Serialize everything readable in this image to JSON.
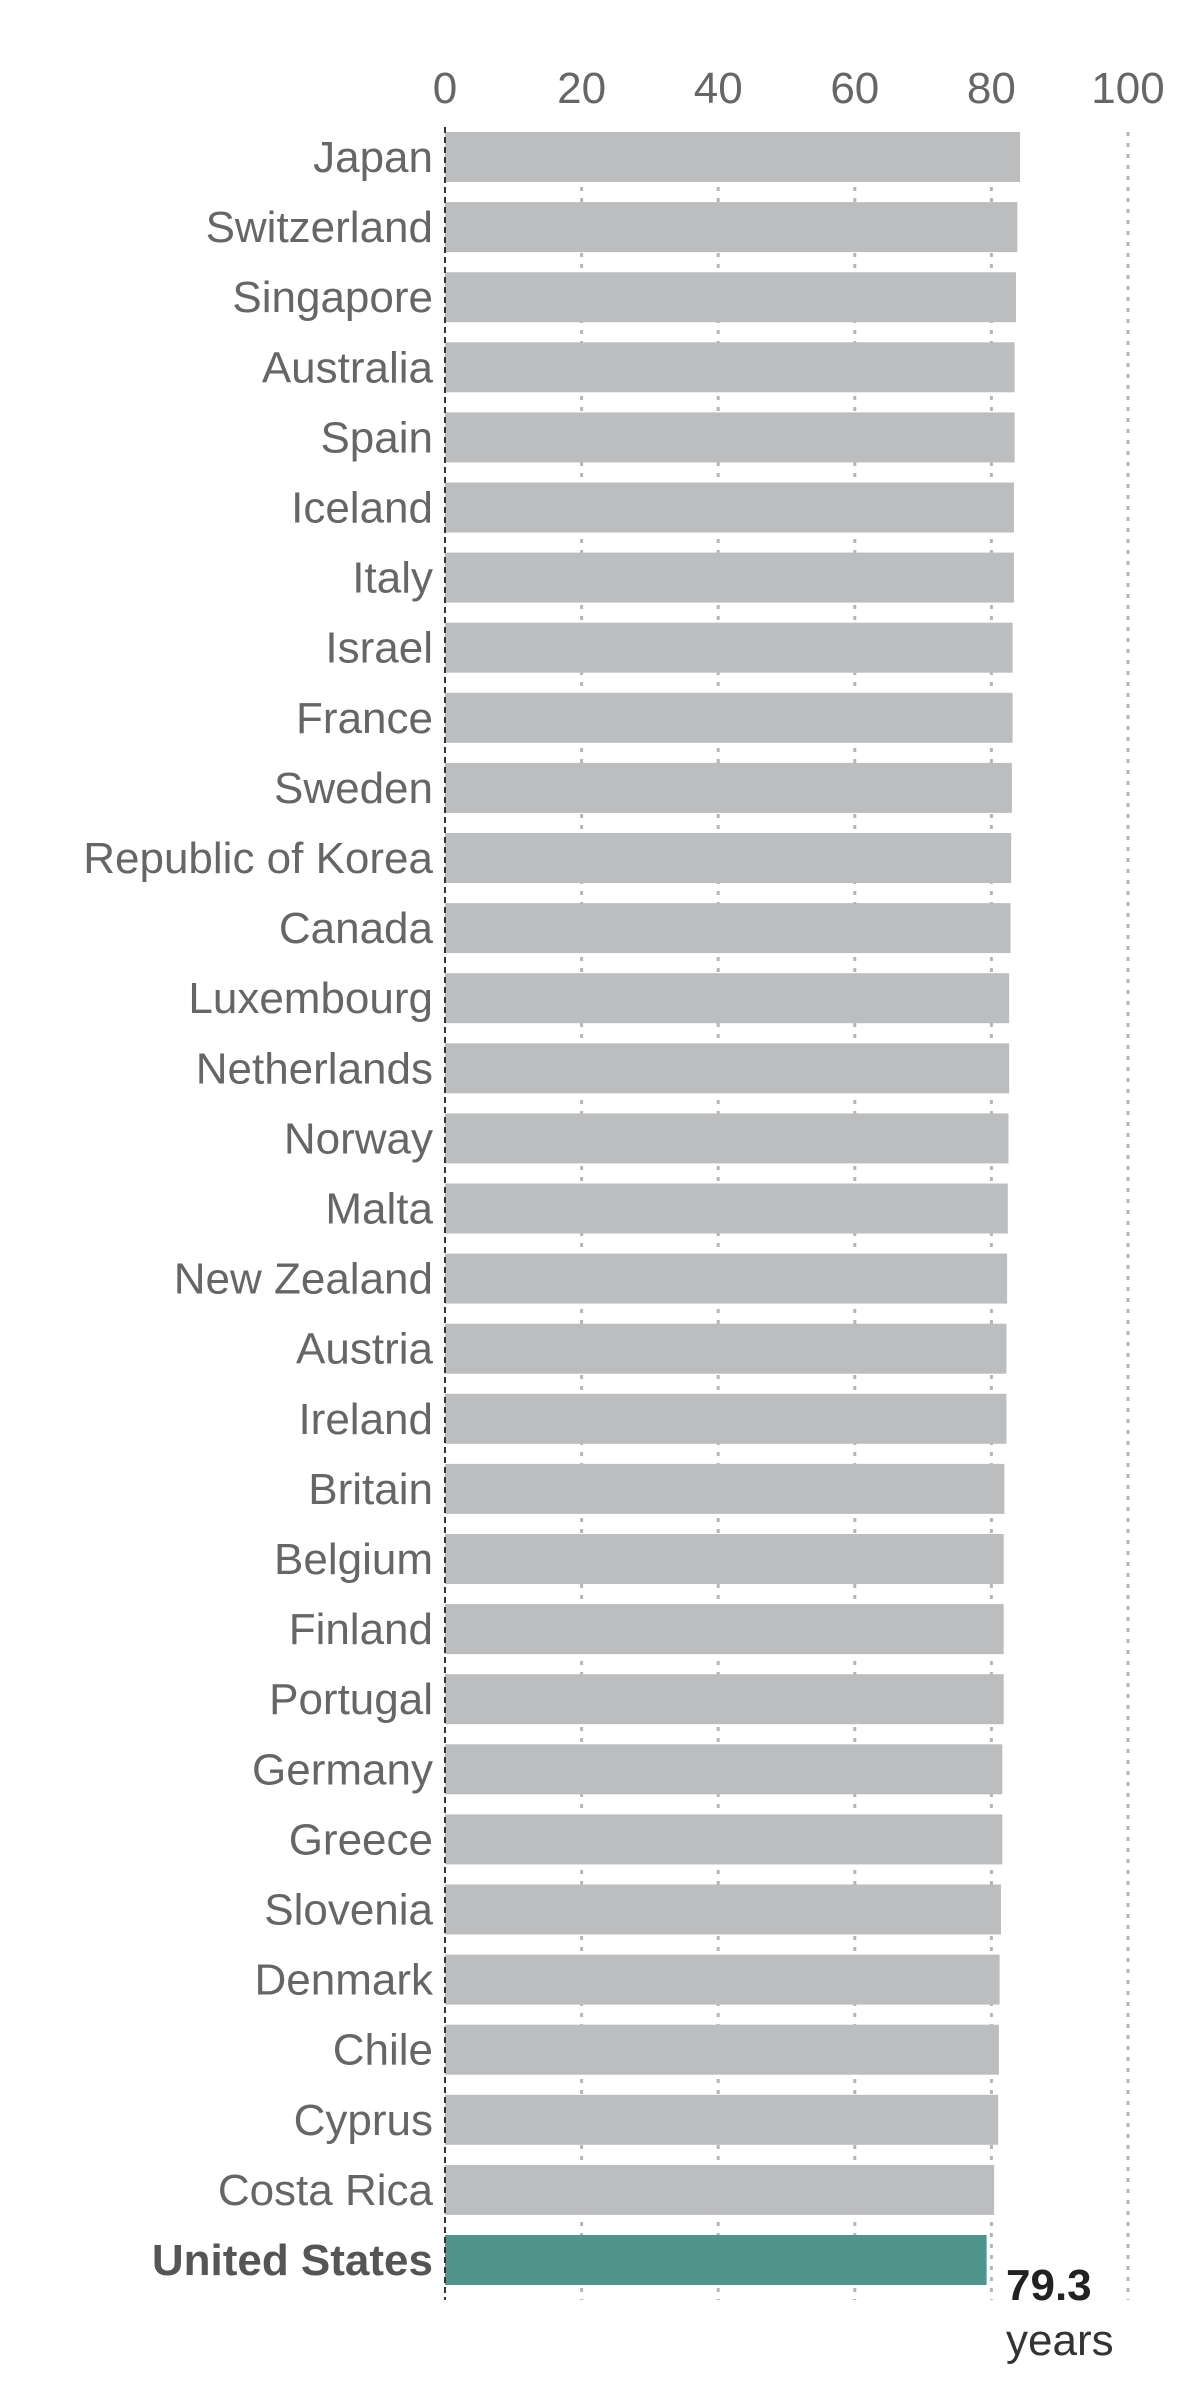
{
  "chart_data": {
    "type": "bar",
    "orientation": "horizontal",
    "categories": [
      "Japan",
      "Switzerland",
      "Singapore",
      "Australia",
      "Spain",
      "Iceland",
      "Italy",
      "Israel",
      "France",
      "Sweden",
      "Republic of Korea",
      "Canada",
      "Luxembourg",
      "Netherlands",
      "Norway",
      "Malta",
      "New Zealand",
      "Austria",
      "Ireland",
      "Britain",
      "Belgium",
      "Finland",
      "Portugal",
      "Germany",
      "Greece",
      "Slovenia",
      "Denmark",
      "Chile",
      "Cyprus",
      "Costa Rica",
      "United States"
    ],
    "values": [
      84.2,
      83.8,
      83.6,
      83.4,
      83.4,
      83.3,
      83.3,
      83.1,
      83.1,
      83.0,
      82.9,
      82.8,
      82.6,
      82.6,
      82.5,
      82.4,
      82.3,
      82.2,
      82.2,
      81.9,
      81.8,
      81.8,
      81.8,
      81.6,
      81.6,
      81.4,
      81.2,
      81.1,
      81.0,
      80.4,
      79.3
    ],
    "highlight": "United States",
    "highlight_value_label": "79.3",
    "highlight_unit_label": "years",
    "xticks": [
      0,
      20,
      40,
      60,
      80,
      100
    ],
    "xlim": [
      0,
      100
    ],
    "grid": true,
    "colors": {
      "bar": "#bcbdbf",
      "highlight": "#4f958c",
      "grid": "#b5b5b5",
      "axis": "#333333"
    }
  }
}
